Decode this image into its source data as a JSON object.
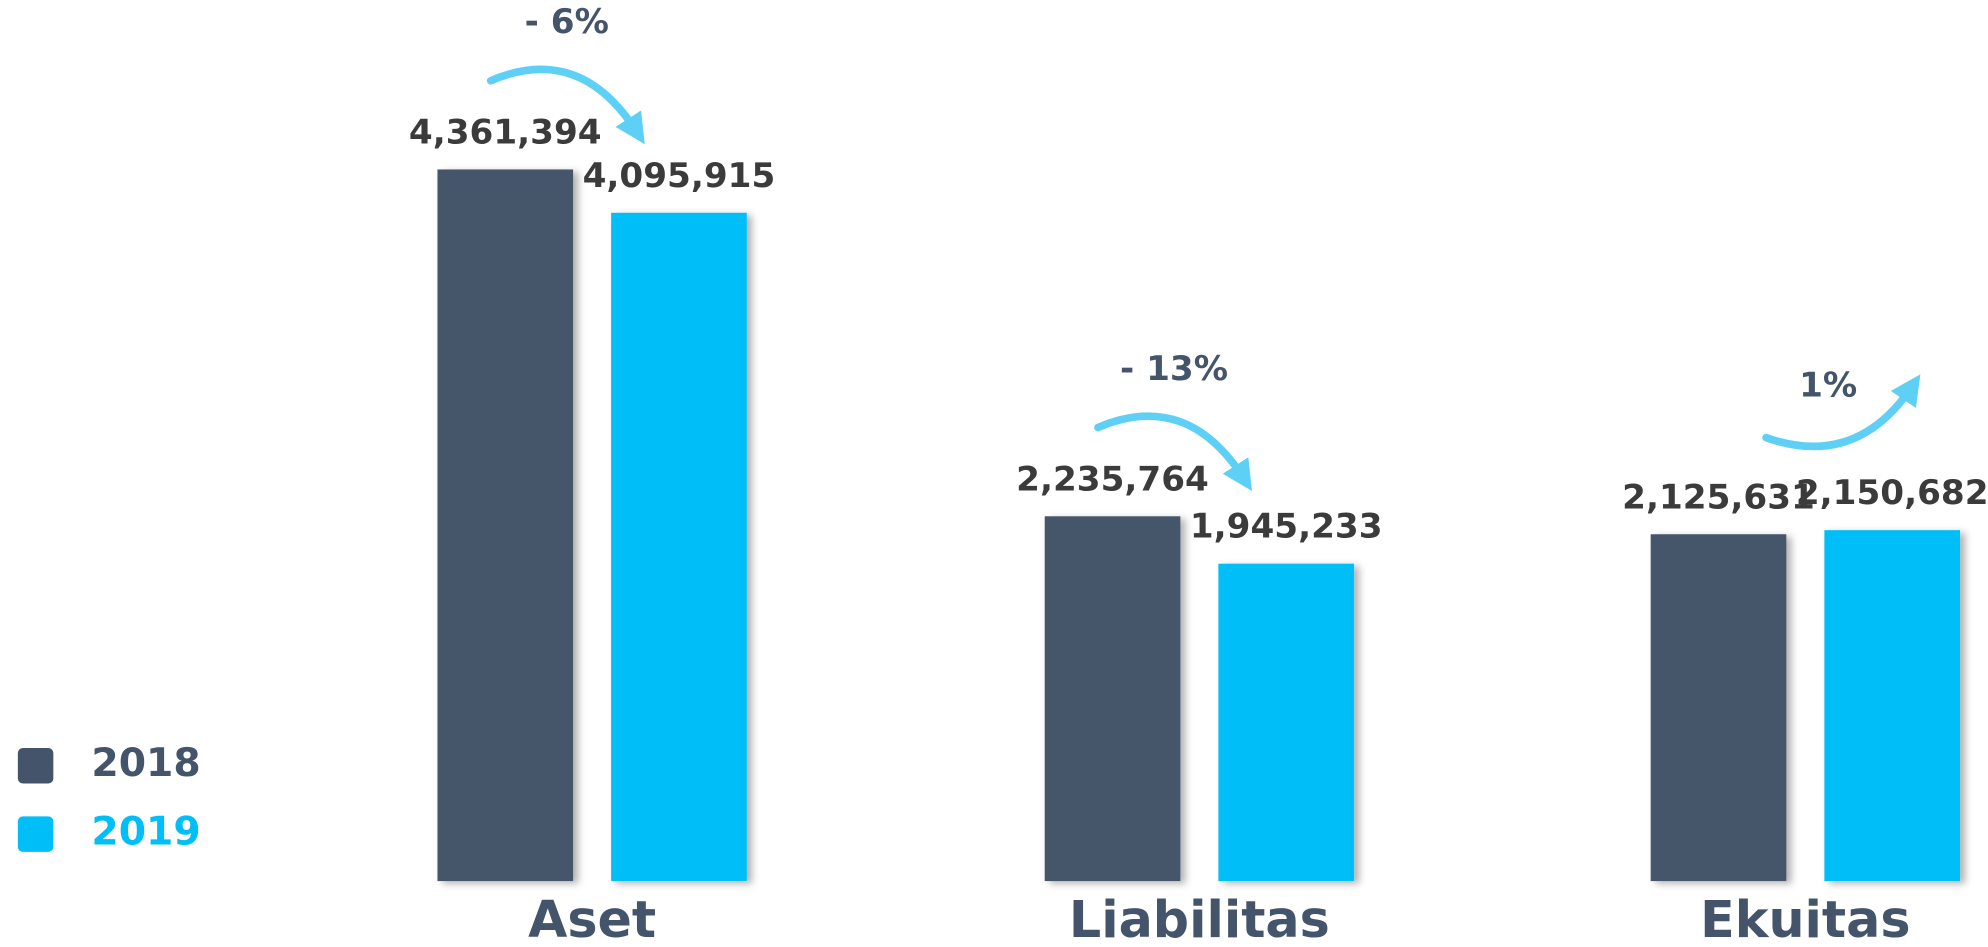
{
  "chart_data": {
    "type": "bar",
    "categories": [
      "Aset",
      "Liabilitas",
      "Ekuitas"
    ],
    "series": [
      {
        "name": "2018",
        "color": "#44546a",
        "values": [
          4361394,
          2235764,
          2125631
        ],
        "value_labels": [
          "4,361,394",
          "2,235,764",
          "2,125,631"
        ]
      },
      {
        "name": "2019",
        "color": "#00bef7",
        "values": [
          4095915,
          1945233,
          2150682
        ],
        "value_labels": [
          "4,095,915",
          "1,945,233",
          "2,150,682"
        ]
      }
    ],
    "annotations": [
      "- 6%",
      "- 13%",
      "1%"
    ],
    "annotation_color": "#5fd0f5",
    "ylim": [
      0,
      5400000
    ],
    "legend": "bottom-left"
  }
}
